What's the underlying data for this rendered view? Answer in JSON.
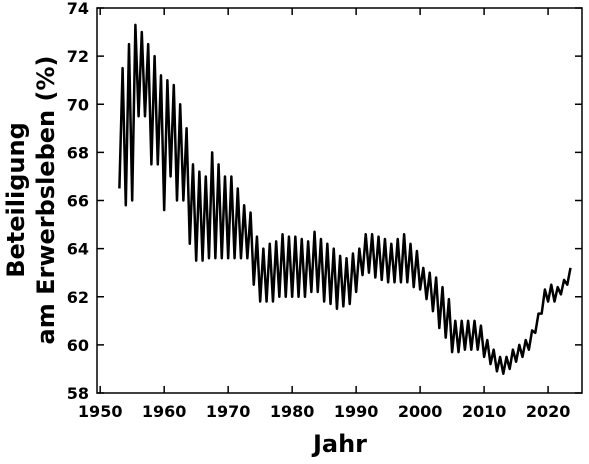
{
  "chart_data": {
    "type": "line",
    "xlabel": "Jahr",
    "ylabel_lines": [
      "Beteiligung",
      "am Erwerbsleben (%)"
    ],
    "xlim": [
      1949.5,
      2025.3
    ],
    "ylim": [
      58,
      74
    ],
    "xticks": [
      1950,
      1960,
      1970,
      1980,
      1990,
      2000,
      2010,
      2020
    ],
    "yticks": [
      58,
      60,
      62,
      64,
      66,
      68,
      70,
      72,
      74
    ],
    "grid": false,
    "x": [
      1953,
      1953.5,
      1954,
      1954.5,
      1955,
      1955.5,
      1956,
      1956.5,
      1957,
      1957.5,
      1958,
      1958.5,
      1959,
      1959.5,
      1960,
      1960.5,
      1961,
      1961.5,
      1962,
      1962.5,
      1963,
      1963.5,
      1964,
      1964.5,
      1965,
      1965.5,
      1966,
      1966.5,
      1967,
      1967.5,
      1968,
      1968.5,
      1969,
      1969.5,
      1970,
      1970.5,
      1971,
      1971.5,
      1972,
      1972.5,
      1973,
      1973.5,
      1974,
      1974.5,
      1975,
      1975.5,
      1976,
      1976.5,
      1977,
      1977.5,
      1978,
      1978.5,
      1979,
      1979.5,
      1980,
      1980.5,
      1981,
      1981.5,
      1982,
      1982.5,
      1983,
      1983.5,
      1984,
      1984.5,
      1985,
      1985.5,
      1986,
      1986.5,
      1987,
      1987.5,
      1988,
      1988.5,
      1989,
      1989.5,
      1990,
      1990.5,
      1991,
      1991.5,
      1992,
      1992.5,
      1993,
      1993.5,
      1994,
      1994.5,
      1995,
      1995.5,
      1996,
      1996.5,
      1997,
      1997.5,
      1998,
      1998.5,
      1999,
      1999.5,
      2000,
      2000.5,
      2001,
      2001.5,
      2002,
      2002.5,
      2003,
      2003.5,
      2004,
      2004.5,
      2005,
      2005.5,
      2006,
      2006.5,
      2007,
      2007.5,
      2008,
      2008.5,
      2009,
      2009.5,
      2010,
      2010.5,
      2011,
      2011.5,
      2012,
      2012.5,
      2013,
      2013.5,
      2014,
      2014.5,
      2015,
      2015.5,
      2016,
      2016.5,
      2017,
      2017.5,
      2018,
      2018.5,
      2019,
      2019.5,
      2020,
      2020.5,
      2021,
      2021.5,
      2022,
      2022.5,
      2023,
      2023.5
    ],
    "series": [
      {
        "name": "Beteiligung",
        "color": "#000000",
        "values": [
          66.5,
          71.5,
          65.8,
          72.5,
          66,
          73.3,
          69.5,
          73,
          69.5,
          72.5,
          67.5,
          72,
          67.5,
          71.2,
          65.6,
          71,
          67,
          70.8,
          66,
          70,
          66,
          69,
          64.2,
          67.5,
          63.5,
          67.2,
          63.5,
          67,
          63.6,
          68,
          63.6,
          67.5,
          63.6,
          67,
          63.6,
          67,
          63.6,
          66.5,
          63.6,
          65.8,
          63.6,
          65.5,
          62.5,
          64.5,
          61.8,
          64,
          61.8,
          64.2,
          61.8,
          64.3,
          62,
          64.6,
          62,
          64.5,
          62,
          64.5,
          62,
          64.4,
          62,
          64.3,
          62.2,
          64.7,
          62.2,
          64.4,
          61.8,
          64.2,
          61.7,
          64,
          61.5,
          63.7,
          61.6,
          63.6,
          61.7,
          63.8,
          62.2,
          64,
          62.9,
          64.6,
          63,
          64.6,
          62.8,
          64.5,
          62.7,
          64.4,
          62.6,
          64.2,
          62.6,
          64.4,
          62.6,
          64.6,
          62.6,
          64.2,
          62.4,
          63.9,
          62.3,
          63.2,
          61.9,
          63,
          61.4,
          62.8,
          60.7,
          62.4,
          60.3,
          61.9,
          59.7,
          61,
          59.7,
          61,
          59.8,
          61,
          59.8,
          61,
          59.8,
          60.8,
          59.5,
          60.2,
          59.2,
          59.8,
          58.9,
          59.5,
          58.8,
          59.5,
          59,
          59.8,
          59.3,
          60,
          59.5,
          60.2,
          59.8,
          60.6,
          60.5,
          61.3,
          61.3,
          62.3,
          61.8,
          62.5,
          61.8,
          62.4,
          62.1,
          62.7,
          62.5,
          63.2
        ]
      }
    ]
  }
}
